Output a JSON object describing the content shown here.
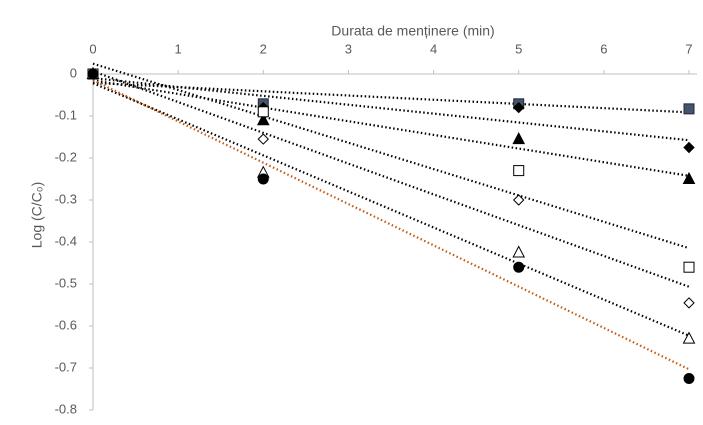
{
  "chart_data": {
    "type": "scatter",
    "x_label": "Durata de menținere (min)",
    "y_label": "Log (C/C₀)",
    "xlim": [
      0,
      7
    ],
    "xticks": [
      0,
      1,
      2,
      3,
      4,
      5,
      6,
      7
    ],
    "ylim": [
      -0.8,
      0
    ],
    "yticks": [
      0,
      -0.1,
      -0.2,
      -0.3,
      -0.4,
      -0.5,
      -0.6,
      -0.7,
      -0.8
    ],
    "trendline": "linear",
    "series": [
      {
        "marker": "square",
        "filled": true,
        "color": "#44546a",
        "trend_color": "#000000",
        "x": [
          0,
          2,
          5,
          7
        ],
        "values": [
          0,
          -0.071,
          -0.071,
          -0.083
        ]
      },
      {
        "marker": "diamond",
        "filled": true,
        "color": "#000000",
        "trend_color": "#000000",
        "x": [
          0,
          2,
          5,
          7
        ],
        "values": [
          0,
          -0.08,
          -0.08,
          -0.175
        ]
      },
      {
        "marker": "triangle",
        "filled": true,
        "color": "#000000",
        "trend_color": "#000000",
        "x": [
          0,
          2,
          5,
          7
        ],
        "values": [
          0,
          -0.11,
          -0.155,
          -0.25
        ]
      },
      {
        "marker": "square",
        "filled": false,
        "color": "#000000",
        "trend_color": "#000000",
        "x": [
          0,
          2,
          5,
          7
        ],
        "values": [
          0,
          -0.09,
          -0.23,
          -0.46
        ]
      },
      {
        "marker": "diamond",
        "filled": false,
        "color": "#000000",
        "trend_color": "#000000",
        "x": [
          0,
          2,
          5,
          7
        ],
        "values": [
          0,
          -0.155,
          -0.3,
          -0.545
        ]
      },
      {
        "marker": "triangle",
        "filled": false,
        "color": "#000000",
        "trend_color": "#000000",
        "x": [
          0,
          2,
          5,
          7
        ],
        "values": [
          0,
          -0.235,
          -0.425,
          -0.63
        ]
      },
      {
        "marker": "circle",
        "filled": true,
        "color": "#000000",
        "trend_color": "#c55a11",
        "x": [
          0,
          2,
          5,
          7
        ],
        "values": [
          0,
          -0.25,
          -0.46,
          -0.725
        ]
      }
    ]
  }
}
